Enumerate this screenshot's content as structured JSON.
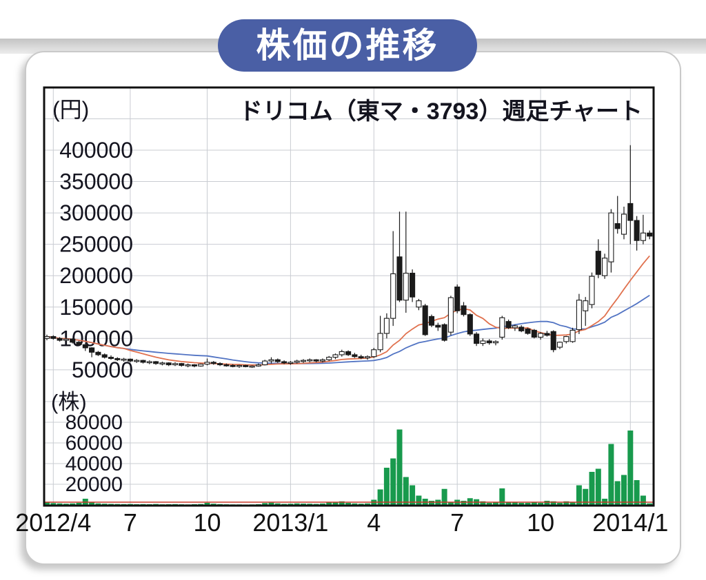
{
  "badge": {
    "title": "株価の推移"
  },
  "chart": {
    "title": "ドリコム（東マ・3793）週足チャート",
    "price_unit_label": "(円)",
    "volume_unit_label": "(株)"
  },
  "colors": {
    "badge_bg": "#4a5fa5",
    "badge_text": "#ffffff",
    "candle_up_fill": "#ffffff",
    "candle_down_fill": "#1a1a1a",
    "candle_stroke": "#1a1a1a",
    "ma_short": "#e0714e",
    "ma_long": "#5173c3",
    "volume_bar": "#189a4d",
    "volume_baseline": "#c83a2a",
    "grid": "#c9ccd2",
    "frame": "#111111",
    "axis_text": "#14141f"
  },
  "chart_data": {
    "type": "candlestick",
    "period": "weekly",
    "title": "ドリコム（東マ・3793）週足チャート",
    "price_axis": {
      "unit": "円",
      "ticks": [
        50000,
        100000,
        150000,
        200000,
        250000,
        300000,
        350000,
        400000
      ]
    },
    "volume_axis": {
      "unit": "株",
      "ticks": [
        20000,
        40000,
        60000,
        80000
      ]
    },
    "x_ticks": {
      "labels": [
        "2012/4",
        "7",
        "10",
        "2013/1",
        "4",
        "7",
        "10",
        "2014/1"
      ],
      "week_indices": [
        1,
        13,
        25,
        38,
        51,
        64,
        77,
        91
      ]
    },
    "ma_short_weeks": 13,
    "ma_long_weeks": 26,
    "weeks_format": [
      "open",
      "high",
      "low",
      "close",
      "volume"
    ],
    "weeks": [
      [
        100000,
        106000,
        97000,
        103000,
        2500
      ],
      [
        103000,
        105000,
        98000,
        100000,
        1800
      ],
      [
        100000,
        102000,
        95000,
        97000,
        1500
      ],
      [
        97000,
        101000,
        94000,
        99000,
        1200
      ],
      [
        99000,
        100000,
        92000,
        94000,
        1500
      ],
      [
        94000,
        96000,
        88000,
        90000,
        2000
      ],
      [
        90000,
        93000,
        80000,
        85000,
        6000
      ],
      [
        85000,
        86000,
        70000,
        78000,
        3000
      ],
      [
        78000,
        80000,
        72000,
        74000,
        1500
      ],
      [
        74000,
        76000,
        68000,
        70000,
        1200
      ],
      [
        70000,
        73000,
        66000,
        68000,
        1000
      ],
      [
        68000,
        70000,
        64000,
        66000,
        900
      ],
      [
        66000,
        69000,
        63000,
        67000,
        800
      ],
      [
        67000,
        68000,
        62000,
        64000,
        900
      ],
      [
        64000,
        67000,
        61000,
        65000,
        700
      ],
      [
        65000,
        66000,
        60000,
        62000,
        800
      ],
      [
        62000,
        65000,
        59000,
        63000,
        700
      ],
      [
        63000,
        64000,
        58000,
        60000,
        900
      ],
      [
        60000,
        63000,
        57000,
        61000,
        600
      ],
      [
        61000,
        62000,
        56000,
        58000,
        700
      ],
      [
        58000,
        62000,
        56000,
        60000,
        800
      ],
      [
        60000,
        61000,
        55000,
        57000,
        600
      ],
      [
        57000,
        60000,
        54000,
        58000,
        500
      ],
      [
        58000,
        59000,
        54000,
        56000,
        700
      ],
      [
        56000,
        60000,
        55000,
        59000,
        900
      ],
      [
        59000,
        68000,
        57000,
        62000,
        2000
      ],
      [
        62000,
        64000,
        58000,
        60000,
        1200
      ],
      [
        60000,
        62000,
        56000,
        58000,
        800
      ],
      [
        58000,
        60000,
        55000,
        57000,
        600
      ],
      [
        57000,
        59000,
        54000,
        56000,
        500
      ],
      [
        56000,
        58000,
        53000,
        57000,
        500
      ],
      [
        57000,
        58000,
        54000,
        55000,
        400
      ],
      [
        55000,
        57000,
        53000,
        56000,
        500
      ],
      [
        56000,
        60000,
        55000,
        58000,
        700
      ],
      [
        58000,
        66000,
        57000,
        64000,
        1800
      ],
      [
        64000,
        70000,
        60000,
        66000,
        2200
      ],
      [
        66000,
        68000,
        61000,
        63000,
        1500
      ],
      [
        63000,
        65000,
        59000,
        61000,
        1000
      ],
      [
        61000,
        64000,
        58000,
        62000,
        1200
      ],
      [
        62000,
        66000,
        60000,
        64000,
        1500
      ],
      [
        64000,
        67000,
        61000,
        65000,
        1300
      ],
      [
        65000,
        68000,
        62000,
        66000,
        1200
      ],
      [
        66000,
        67000,
        62000,
        64000,
        1000
      ],
      [
        64000,
        68000,
        62000,
        66000,
        1400
      ],
      [
        66000,
        72000,
        64000,
        70000,
        2500
      ],
      [
        70000,
        76000,
        67000,
        74000,
        3000
      ],
      [
        74000,
        82000,
        71000,
        79000,
        3500
      ],
      [
        79000,
        81000,
        72000,
        74000,
        2000
      ],
      [
        74000,
        77000,
        69000,
        71000,
        1500
      ],
      [
        71000,
        74000,
        67000,
        69000,
        1200
      ],
      [
        69000,
        73000,
        66000,
        71000,
        1500
      ],
      [
        71000,
        85000,
        69000,
        82000,
        5000
      ],
      [
        82000,
        136000,
        78000,
        108000,
        15000
      ],
      [
        108000,
        140000,
        100000,
        132000,
        36000
      ],
      [
        132000,
        271000,
        120000,
        203000,
        45000
      ],
      [
        230000,
        302000,
        158000,
        161000,
        73000
      ],
      [
        161000,
        302000,
        141000,
        204000,
        27000
      ],
      [
        204000,
        210000,
        158000,
        166000,
        19000
      ],
      [
        150000,
        163000,
        145000,
        160000,
        9000
      ],
      [
        152000,
        155000,
        104000,
        106000,
        6000
      ],
      [
        135000,
        138000,
        118000,
        121000,
        4000
      ],
      [
        121000,
        125000,
        112000,
        118000,
        5000
      ],
      [
        122000,
        124000,
        95000,
        97000,
        15500
      ],
      [
        110000,
        168000,
        105000,
        165000,
        3000
      ],
      [
        182000,
        186000,
        140000,
        144000,
        5000
      ],
      [
        152000,
        158000,
        135000,
        138000,
        4000
      ],
      [
        138000,
        140000,
        104000,
        107000,
        6500
      ],
      [
        107000,
        110000,
        88000,
        92000,
        5500
      ],
      [
        92000,
        100000,
        88000,
        96000,
        3500
      ],
      [
        96000,
        99000,
        90000,
        93000,
        2000
      ],
      [
        93000,
        97000,
        89000,
        95000,
        2500
      ],
      [
        102000,
        136000,
        98000,
        133000,
        16000
      ],
      [
        127000,
        130000,
        115000,
        117000,
        3000
      ],
      [
        117000,
        122000,
        112000,
        120000,
        2500
      ],
      [
        118000,
        121000,
        110000,
        112000,
        2000
      ],
      [
        115000,
        117000,
        106000,
        108000,
        2000
      ],
      [
        113000,
        115000,
        100000,
        102000,
        2500
      ],
      [
        102000,
        110000,
        98000,
        108000,
        2000
      ],
      [
        108000,
        112000,
        103000,
        105000,
        4000
      ],
      [
        111000,
        113000,
        78000,
        82000,
        3500
      ],
      [
        86000,
        95000,
        83000,
        94000,
        2000
      ],
      [
        95000,
        104000,
        92000,
        103000,
        3500
      ],
      [
        95000,
        117000,
        93000,
        113000,
        2500
      ],
      [
        114000,
        171000,
        107000,
        161000,
        19000
      ],
      [
        144000,
        166000,
        120000,
        160000,
        15500
      ],
      [
        154000,
        205000,
        148000,
        199000,
        32000
      ],
      [
        239000,
        258000,
        196000,
        202000,
        35000
      ],
      [
        200000,
        235000,
        195000,
        228000,
        6000
      ],
      [
        222000,
        306000,
        205000,
        300000,
        59000
      ],
      [
        283000,
        327000,
        267000,
        275000,
        23000
      ],
      [
        266000,
        310000,
        258000,
        298000,
        29000
      ],
      [
        315000,
        408000,
        250000,
        288000,
        72000
      ],
      [
        288000,
        295000,
        240000,
        256000,
        24000
      ],
      [
        256000,
        297000,
        250000,
        268000,
        9000
      ],
      [
        268000,
        272000,
        258000,
        263000,
        1500
      ]
    ]
  }
}
